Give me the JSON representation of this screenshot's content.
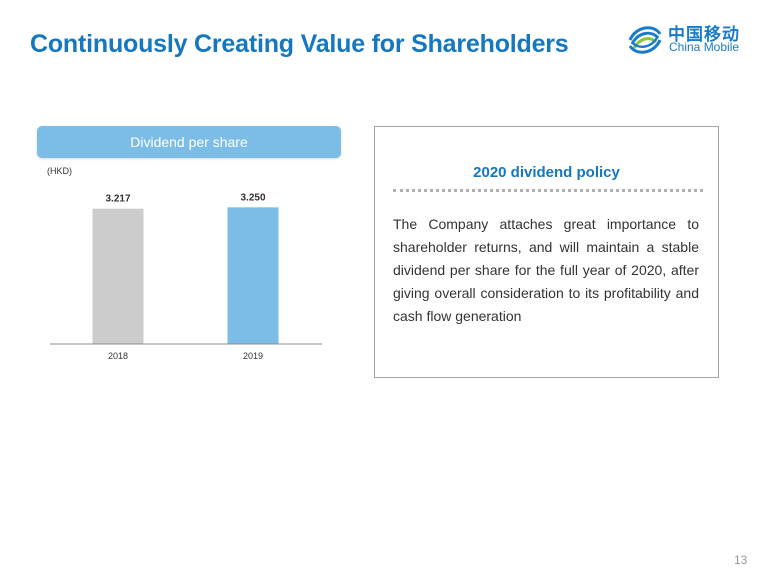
{
  "slide": {
    "title": "Continuously Creating Value for Shareholders",
    "page_number": "13"
  },
  "logo": {
    "chinese": "中国移动",
    "english": "China Mobile",
    "icon": "china-mobile-swirl-icon",
    "color": "#1a7cc8"
  },
  "chart_panel": {
    "header": "Dividend per share",
    "unit": "(HKD)"
  },
  "chart_data": {
    "type": "bar",
    "title": "Dividend per share",
    "ylabel": "(HKD)",
    "categories": [
      "2018",
      "2019"
    ],
    "values": [
      3.217,
      3.25
    ],
    "value_labels": [
      "3.217",
      "3.250"
    ],
    "colors": [
      "#cccccc",
      "#7bbde6"
    ],
    "ylim": [
      0,
      3.9
    ],
    "grid": false,
    "legend": "none"
  },
  "policy": {
    "title": "2020 dividend policy",
    "text": "The Company attaches great importance to shareholder returns, and will maintain a stable dividend per share for the full year of 2020, after giving overall consideration to its profitability and cash flow generation"
  },
  "colors": {
    "title_blue": "#1477c0",
    "header_blue": "#7bbde6",
    "bar_grey": "#cccccc",
    "bar_blue": "#7bbde6"
  }
}
